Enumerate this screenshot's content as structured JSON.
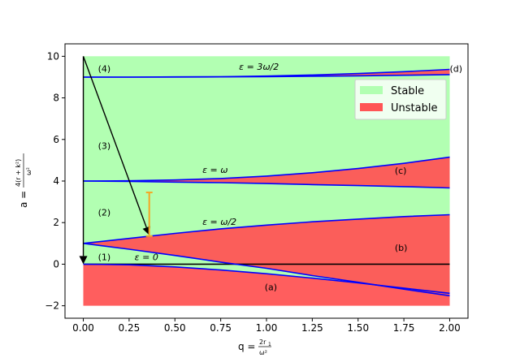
{
  "chart_data": {
    "type": "area",
    "xlabel_main": "q = ",
    "xlabel_frac_num": "2r",
    "xlabel_frac_num_sub": "1",
    "xlabel_frac_den": "ω²",
    "ylabel_main": "a = ",
    "ylabel_frac_num": "4(r + k²)",
    "ylabel_frac_den": "ω²",
    "xlim": [
      -0.1,
      2.1
    ],
    "ylim": [
      -2.6,
      10.6
    ],
    "xticks": [
      0.0,
      0.25,
      0.5,
      0.75,
      1.0,
      1.25,
      1.5,
      1.75,
      2.0
    ],
    "xtick_labels": [
      "0.00",
      "0.25",
      "0.50",
      "0.75",
      "1.00",
      "1.25",
      "1.50",
      "1.75",
      "2.00"
    ],
    "yticks": [
      -2,
      0,
      2,
      4,
      6,
      8,
      10
    ],
    "ytick_labels": [
      "−2",
      "0",
      "2",
      "4",
      "6",
      "8",
      "10"
    ],
    "grid": false,
    "legend": {
      "placement": "upper-right",
      "entries": [
        {
          "label": "Stable",
          "color": "#b2ffb2"
        },
        {
          "label": "Unstable",
          "color": "#ff5555"
        }
      ]
    },
    "series": [
      {
        "name": "a_lower_eps0",
        "values": [
          [
            0,
            0
          ],
          [
            0.25,
            -0.03
          ],
          [
            0.5,
            -0.13
          ],
          [
            0.75,
            -0.28
          ],
          [
            1.0,
            -0.46
          ],
          [
            1.25,
            -0.67
          ],
          [
            1.5,
            -0.9
          ],
          [
            1.75,
            -1.15
          ],
          [
            2.0,
            -1.4
          ]
        ]
      },
      {
        "name": "a_lower_eps1",
        "values": [
          [
            0,
            1
          ],
          [
            0.25,
            0.72
          ],
          [
            0.5,
            0.42
          ],
          [
            0.75,
            0.1
          ],
          [
            1.0,
            -0.2
          ],
          [
            1.25,
            -0.55
          ],
          [
            1.5,
            -0.87
          ],
          [
            1.75,
            -1.2
          ],
          [
            2.0,
            -1.52
          ]
        ]
      },
      {
        "name": "a_upper_eps1",
        "values": [
          [
            0,
            1
          ],
          [
            0.25,
            1.24
          ],
          [
            0.5,
            1.48
          ],
          [
            0.75,
            1.7
          ],
          [
            1.0,
            1.88
          ],
          [
            1.25,
            2.04
          ],
          [
            1.5,
            2.17
          ],
          [
            1.75,
            2.29
          ],
          [
            2.0,
            2.38
          ]
        ]
      },
      {
        "name": "a_lower_eps2",
        "values": [
          [
            0,
            4
          ],
          [
            0.25,
            3.98
          ],
          [
            0.5,
            3.95
          ],
          [
            0.75,
            3.92
          ],
          [
            1.0,
            3.88
          ],
          [
            1.25,
            3.83
          ],
          [
            1.5,
            3.78
          ],
          [
            1.75,
            3.73
          ],
          [
            2.0,
            3.67
          ]
        ]
      },
      {
        "name": "a_upper_eps2",
        "values": [
          [
            0,
            4
          ],
          [
            0.25,
            4.01
          ],
          [
            0.5,
            4.05
          ],
          [
            0.75,
            4.12
          ],
          [
            1.0,
            4.24
          ],
          [
            1.25,
            4.4
          ],
          [
            1.5,
            4.6
          ],
          [
            1.75,
            4.85
          ],
          [
            2.0,
            5.15
          ]
        ]
      },
      {
        "name": "a_lower_eps3",
        "values": [
          [
            0,
            9
          ],
          [
            0.25,
            9.0
          ],
          [
            0.5,
            9.0
          ],
          [
            0.75,
            9.01
          ],
          [
            1.0,
            9.02
          ],
          [
            1.25,
            9.04
          ],
          [
            1.5,
            9.06
          ],
          [
            1.75,
            9.09
          ],
          [
            2.0,
            9.12
          ]
        ]
      },
      {
        "name": "a_upper_eps3",
        "values": [
          [
            0,
            9
          ],
          [
            0.25,
            9.0
          ],
          [
            0.5,
            9.01
          ],
          [
            0.75,
            9.02
          ],
          [
            1.0,
            9.05
          ],
          [
            1.25,
            9.1
          ],
          [
            1.5,
            9.17
          ],
          [
            1.75,
            9.26
          ],
          [
            2.0,
            9.37
          ]
        ]
      }
    ],
    "axis_line_y0": {
      "y": 0,
      "color": "#000000"
    },
    "arrows": [
      {
        "from": [
          0,
          10
        ],
        "to": [
          0,
          0
        ],
        "color": "#000000"
      },
      {
        "from": [
          0,
          10
        ],
        "to": [
          0.36,
          1.4
        ],
        "color": "#000000"
      }
    ],
    "error_bar": {
      "x": 0.36,
      "y_low": 1.35,
      "y_high": 3.45,
      "color": "#f5a623"
    },
    "annotations": [
      {
        "text": "(4)",
        "x": 0.08,
        "y": 9.4
      },
      {
        "text": "(3)",
        "x": 0.08,
        "y": 5.7
      },
      {
        "text": "(2)",
        "x": 0.08,
        "y": 2.5
      },
      {
        "text": "(1)",
        "x": 0.08,
        "y": 0.35
      },
      {
        "text": "(d)",
        "x": 2.0,
        "y": 9.4
      },
      {
        "text": "(c)",
        "x": 1.7,
        "y": 4.5
      },
      {
        "text": "(b)",
        "x": 1.7,
        "y": 0.8
      },
      {
        "text": "(a)",
        "x": 0.99,
        "y": -1.1
      }
    ],
    "eps_labels": [
      {
        "text": "ε = 0",
        "x": 0.28,
        "y": 0.2
      },
      {
        "text": "ε = ω/2",
        "x": 0.65,
        "y": 1.9
      },
      {
        "text": "ε = ω",
        "x": 0.65,
        "y": 4.4
      },
      {
        "text": "ε = 3ω/2",
        "x": 0.85,
        "y": 9.35
      }
    ],
    "colors": {
      "stable": "#b2ffb2",
      "unstable": "#ff5555",
      "curve": "#0000ff",
      "arrow": "#000000",
      "errorbar": "#f5a623"
    }
  }
}
